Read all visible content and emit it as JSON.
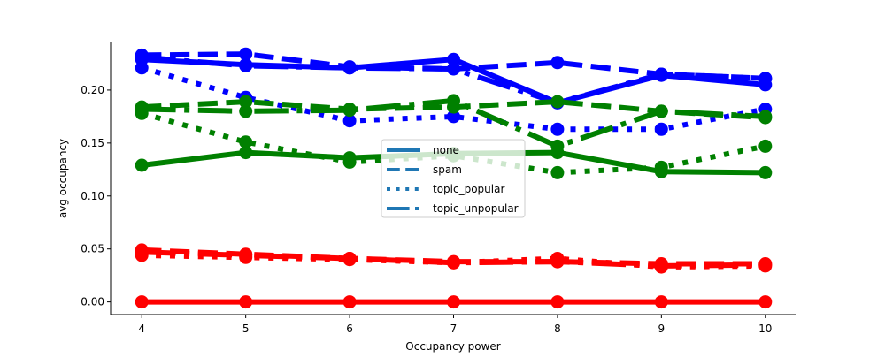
{
  "chart_data": {
    "type": "line",
    "xlabel": "Occupancy power",
    "ylabel": "avg occupancy",
    "x": [
      4,
      5,
      6,
      7,
      8,
      9,
      10
    ],
    "xlim": [
      3.7,
      10.3
    ],
    "ylim": [
      -0.012,
      0.245
    ],
    "xticks": [
      "4",
      "5",
      "6",
      "7",
      "8",
      "9",
      "10"
    ],
    "yticks": [
      "0.00",
      "0.05",
      "0.10",
      "0.15",
      "0.20"
    ],
    "ytick_values": [
      0.0,
      0.05,
      0.1,
      0.15,
      0.2
    ],
    "grid": false,
    "legend_position": "center",
    "legend": [
      {
        "label": "none",
        "style": "solid"
      },
      {
        "label": "spam",
        "style": "dashed"
      },
      {
        "label": "topic_popular",
        "style": "dotted"
      },
      {
        "label": "topic_unpopular",
        "style": "dashdot"
      }
    ],
    "legend_color": "#1f77b4",
    "series": [
      {
        "color": "#0000ff",
        "style": "solid",
        "values": [
          0.229,
          0.224,
          0.221,
          0.229,
          0.188,
          0.214,
          0.205
        ]
      },
      {
        "color": "#0000ff",
        "style": "dashed",
        "values": [
          0.233,
          0.234,
          0.222,
          0.22,
          0.226,
          0.215,
          0.211
        ]
      },
      {
        "color": "#0000ff",
        "style": "dotted",
        "values": [
          0.221,
          0.193,
          0.171,
          0.175,
          0.163,
          0.163,
          0.182
        ]
      },
      {
        "color": "#0000ff",
        "style": "dashdot",
        "values": [
          0.231,
          0.223,
          0.221,
          0.22,
          0.188,
          0.215,
          0.211
        ]
      },
      {
        "color": "#008000",
        "style": "solid",
        "values": [
          0.129,
          0.141,
          0.136,
          0.14,
          0.141,
          0.123,
          0.122
        ]
      },
      {
        "color": "#008000",
        "style": "dashed",
        "values": [
          0.184,
          0.189,
          0.182,
          0.184,
          0.189,
          0.18,
          0.174
        ]
      },
      {
        "color": "#008000",
        "style": "dotted",
        "values": [
          0.178,
          0.151,
          0.132,
          0.138,
          0.122,
          0.127,
          0.147
        ]
      },
      {
        "color": "#008000",
        "style": "dashdot",
        "values": [
          0.182,
          0.18,
          0.181,
          0.19,
          0.147,
          0.18,
          0.175
        ]
      },
      {
        "color": "#ff0000",
        "style": "solid",
        "values": [
          0.0,
          0.0,
          0.0,
          0.0,
          0.0,
          0.0,
          0.0
        ]
      },
      {
        "color": "#ff0000",
        "style": "dashed",
        "values": [
          0.049,
          0.045,
          0.041,
          0.038,
          0.038,
          0.036,
          0.036
        ]
      },
      {
        "color": "#ff0000",
        "style": "dotted",
        "values": [
          0.044,
          0.042,
          0.04,
          0.037,
          0.041,
          0.033,
          0.034
        ]
      },
      {
        "color": "#ff0000",
        "style": "dashdot",
        "values": [
          0.047,
          0.044,
          0.041,
          0.037,
          0.038,
          0.034,
          0.035
        ]
      }
    ]
  }
}
